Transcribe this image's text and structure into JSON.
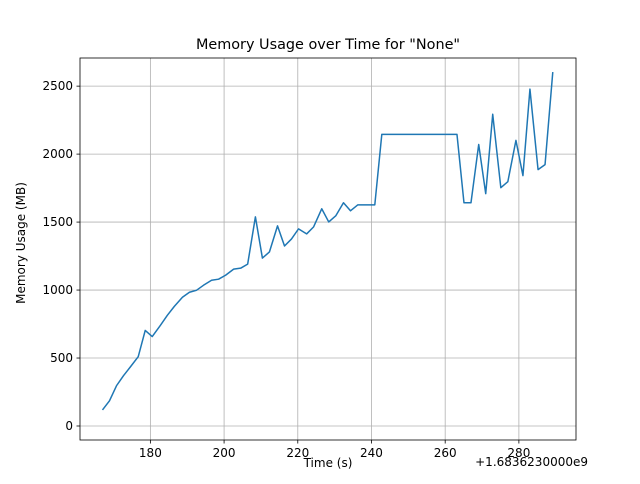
{
  "chart_data": {
    "type": "line",
    "title": "Memory Usage over Time for \"None\"",
    "x_label": "Time (s)",
    "y_label": "Memory Usage (MB)",
    "x_offset_text": "+1.6836230000e9",
    "x": [
      167.0,
      168.9,
      170.8,
      172.7,
      174.6,
      176.7,
      178.6,
      180.5,
      182.7,
      184.6,
      186.5,
      188.7,
      190.6,
      192.5,
      194.4,
      196.6,
      198.5,
      200.4,
      202.6,
      204.5,
      206.4,
      208.5,
      210.4,
      212.3,
      214.5,
      216.4,
      218.3,
      220.2,
      222.4,
      224.3,
      226.5,
      228.4,
      230.3,
      232.4,
      234.3,
      236.3,
      238.4,
      240.9,
      242.8,
      246.9,
      251.0,
      255.1,
      259.2,
      263.2,
      265.1,
      267.0,
      269.1,
      271.0,
      272.9,
      275.1,
      277.0,
      279.2,
      281.1,
      283.0,
      285.2,
      287.1,
      289.2
    ],
    "series": [
      {
        "name": "Memory Usage",
        "color": "#1f77b4",
        "values": [
          118,
          185,
          296,
          370,
          436,
          510,
          703,
          658,
          740,
          814,
          880,
          947,
          984,
          998,
          1035,
          1072,
          1080,
          1109,
          1154,
          1161,
          1191,
          1538,
          1235,
          1280,
          1472,
          1324,
          1376,
          1450,
          1413,
          1465,
          1598,
          1501,
          1546,
          1642,
          1583,
          1627,
          1627,
          1627,
          2145,
          2145,
          2145,
          2145,
          2145,
          2145,
          1642,
          1642,
          2071,
          1709,
          2293,
          1753,
          1797,
          2101,
          1842,
          2478,
          1886,
          1923,
          2604
        ]
      }
    ],
    "xlim": [
      160.9,
      295.5
    ],
    "ylim": [
      -103,
      2707
    ],
    "xticks": [
      180,
      200,
      220,
      240,
      260,
      280
    ],
    "yticks": [
      0,
      500,
      1000,
      1500,
      2000,
      2500
    ],
    "grid": true
  }
}
